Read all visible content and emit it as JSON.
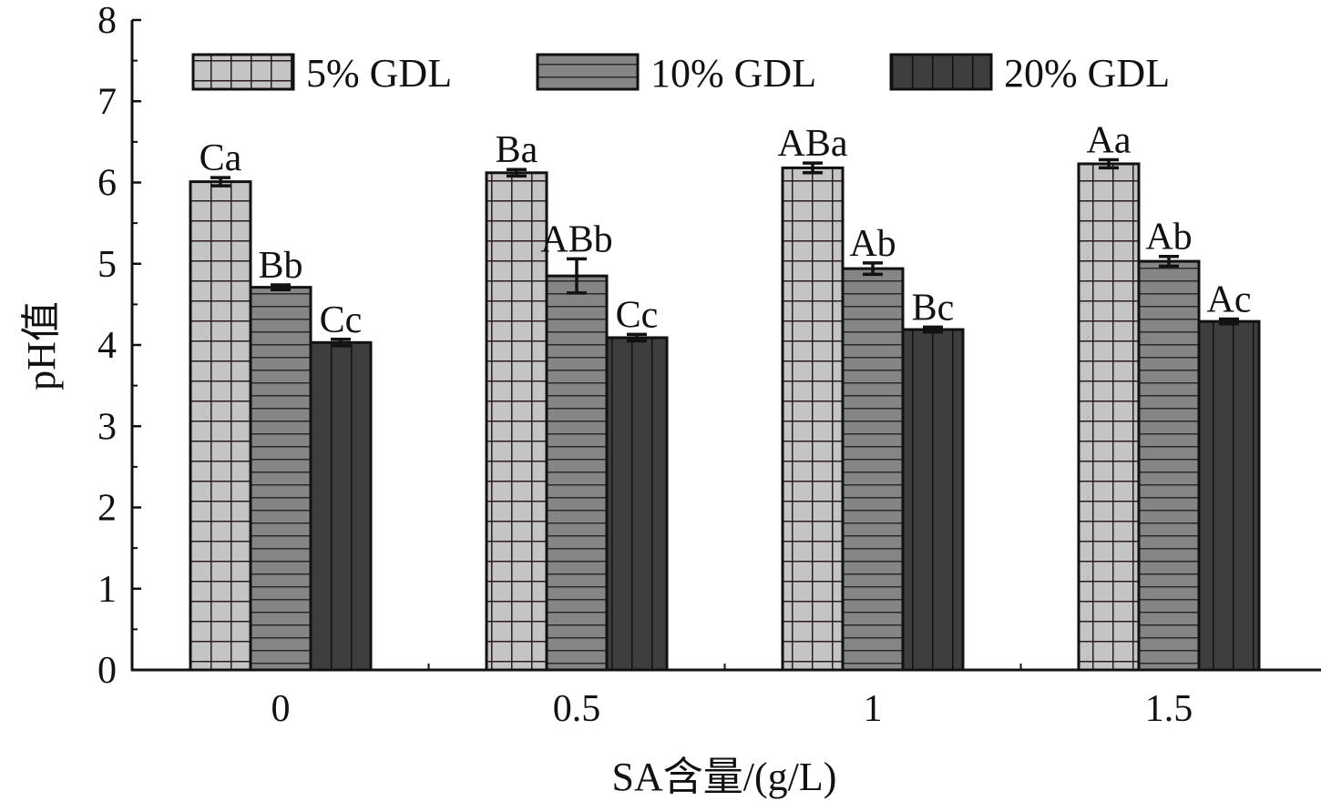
{
  "chart_data": {
    "type": "bar",
    "xlabel": "SA含量/(g/L)",
    "ylabel": "pH值",
    "ylim": [
      0,
      8
    ],
    "yticks": [
      "0",
      "1",
      "2",
      "3",
      "4",
      "5",
      "6",
      "7",
      "8"
    ],
    "categories": [
      "0",
      "0.5",
      "1",
      "1.5"
    ],
    "legend_position": "top",
    "grid": false,
    "series": [
      {
        "name": "5% GDL",
        "fill": "#c4c4c4",
        "pattern": "grid",
        "values": [
          6.01,
          6.12,
          6.18,
          6.23
        ],
        "errors": [
          0.05,
          0.04,
          0.06,
          0.05
        ],
        "labels": [
          "Ca",
          "Ba",
          "ABa",
          "Aa"
        ]
      },
      {
        "name": "10% GDL",
        "fill": "#858585",
        "pattern": "horizontal",
        "values": [
          4.71,
          4.85,
          4.94,
          5.03
        ],
        "errors": [
          0.03,
          0.21,
          0.07,
          0.06
        ],
        "labels": [
          "Bb",
          "ABb",
          "Ab",
          "Ab"
        ]
      },
      {
        "name": "20% GDL",
        "fill": "#3e3e3e",
        "pattern": "vertical",
        "values": [
          4.03,
          4.09,
          4.19,
          4.29
        ],
        "errors": [
          0.04,
          0.04,
          0.03,
          0.03
        ],
        "labels": [
          "Cc",
          "Cc",
          "Bc",
          "Ac"
        ]
      }
    ]
  }
}
